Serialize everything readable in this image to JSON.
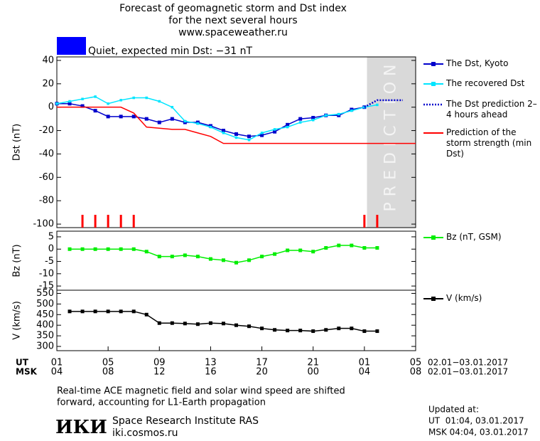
{
  "title_lines": [
    "Forecast of geomagnetic storm and Dst index",
    "for the next several hours",
    "www.spaceweather.ru"
  ],
  "status": "Quiet, expected min Dst: −31 nT",
  "status_color": "#0000ff",
  "chart_data": [
    {
      "type": "line",
      "y_label": "Dst (nT)",
      "xlim": [
        0,
        28
      ],
      "ylim": [
        -103,
        43
      ],
      "yticks": [
        40,
        20,
        0,
        -20,
        -40,
        -60,
        -80,
        -100
      ],
      "prediction_band": [
        24.2,
        28
      ],
      "prediction_label": "PREDICTION",
      "alert_x": [
        2,
        3,
        4,
        5,
        6,
        24,
        25
      ],
      "alert_color": "#ff0000",
      "series": [
        {
          "name": "The Dst, Kyoto",
          "color": "#0000cc",
          "marker": "square",
          "dash": false,
          "x": [
            0,
            1,
            2,
            3,
            4,
            5,
            6,
            7,
            8,
            9,
            10,
            11,
            12,
            13,
            14,
            15,
            16,
            17,
            18,
            19,
            20,
            21,
            22,
            23,
            24
          ],
          "values": [
            3,
            3,
            1,
            -3,
            -8,
            -8,
            -8,
            -10,
            -13,
            -10,
            -13,
            -13,
            -16,
            -20,
            -23,
            -25,
            -24,
            -21,
            -15,
            -10,
            -9,
            -7,
            -7,
            -2,
            0
          ]
        },
        {
          "name": "The recovered Dst",
          "color": "#00e5ff",
          "marker": "small-square",
          "dash": false,
          "x": [
            0,
            1,
            2,
            3,
            4,
            5,
            6,
            7,
            8,
            9,
            10,
            11,
            12,
            13,
            14,
            15,
            16,
            17,
            18,
            19,
            20,
            21,
            22,
            23,
            24,
            25
          ],
          "values": [
            3,
            5,
            7,
            9,
            3,
            6,
            8,
            8,
            5,
            0,
            -12,
            -14,
            -17,
            -22,
            -26,
            -28,
            -22,
            -19,
            -17,
            -13,
            -11,
            -7,
            -6,
            -3,
            0,
            2
          ]
        },
        {
          "name": "The Dst prediction 2–4 hours ahead",
          "color": "#0000cc",
          "marker": "none",
          "dash": true,
          "x": [
            24,
            25,
            27
          ],
          "values": [
            0,
            6,
            6
          ]
        },
        {
          "name": "Prediction of the storm strength (min Dst)",
          "color": "#ff0000",
          "marker": "none",
          "dash": false,
          "x": [
            0,
            5,
            6,
            7,
            9,
            10,
            11,
            12,
            13,
            28
          ],
          "values": [
            0,
            0,
            -5,
            -17,
            -19,
            -19,
            -22,
            -25,
            -31,
            -31
          ]
        }
      ]
    },
    {
      "type": "line",
      "y_label": "Bz (nT)",
      "xlim": [
        0,
        28
      ],
      "ylim": [
        -16.7,
        7.3
      ],
      "yticks": [
        5,
        0,
        -5,
        -10,
        -15
      ],
      "series": [
        {
          "name": "Bz (nT, GSM)",
          "color": "#00ee00",
          "marker": "square",
          "dash": false,
          "x": [
            1,
            2,
            3,
            4,
            5,
            6,
            7,
            8,
            9,
            10,
            11,
            12,
            13,
            14,
            15,
            16,
            17,
            18,
            19,
            20,
            21,
            22,
            23,
            24,
            25
          ],
          "values": [
            0,
            0,
            0,
            0,
            0,
            0,
            -1,
            -3,
            -3,
            -2.5,
            -3,
            -4,
            -4.5,
            -5.5,
            -4.5,
            -3,
            -2,
            -0.5,
            -0.5,
            -1,
            0.5,
            1.5,
            1.5,
            0.5,
            0.5
          ]
        }
      ]
    },
    {
      "type": "line",
      "y_label": "V (km/s)",
      "xlim": [
        0,
        28
      ],
      "ylim": [
        280,
        565
      ],
      "yticks": [
        550,
        500,
        450,
        400,
        350,
        300
      ],
      "series": [
        {
          "name": "V (km/s)",
          "color": "#000000",
          "marker": "square",
          "dash": false,
          "x": [
            1,
            2,
            3,
            4,
            5,
            6,
            7,
            8,
            9,
            10,
            11,
            12,
            13,
            14,
            15,
            16,
            17,
            18,
            19,
            20,
            21,
            22,
            23,
            24,
            25
          ],
          "values": [
            465,
            465,
            465,
            465,
            465,
            465,
            450,
            410,
            410,
            408,
            405,
            410,
            408,
            400,
            395,
            385,
            378,
            375,
            375,
            372,
            378,
            385,
            385,
            372,
            372
          ]
        }
      ],
      "xticks_rows": [
        {
          "name": "UT",
          "dates": "02.01−03.01.2017",
          "ticks": [
            {
              "value": 0,
              "label": "01"
            },
            {
              "value": 4,
              "label": "05"
            },
            {
              "value": 8,
              "label": "09"
            },
            {
              "value": 12,
              "label": "13"
            },
            {
              "value": 16,
              "label": "17"
            },
            {
              "value": 20,
              "label": "21"
            },
            {
              "value": 24,
              "label": "01"
            },
            {
              "value": 28,
              "label": "05"
            }
          ]
        },
        {
          "name": "MSK",
          "dates": "02.01−03.01.2017",
          "ticks": [
            {
              "value": 0,
              "label": "04"
            },
            {
              "value": 4,
              "label": "08"
            },
            {
              "value": 8,
              "label": "12"
            },
            {
              "value": 12,
              "label": "16"
            },
            {
              "value": 16,
              "label": "20"
            },
            {
              "value": 20,
              "label": "00"
            },
            {
              "value": 24,
              "label": "04"
            },
            {
              "value": 28,
              "label": "08"
            }
          ]
        }
      ]
    }
  ],
  "note_lines": [
    "Real-time ACE magnetic field and solar wind speed are shifted",
    "forward, accounting for L1-Earth propagation"
  ],
  "institute": {
    "logo": "ИКИ",
    "name": "Space Research Institute RAS",
    "url": "iki.cosmos.ru"
  },
  "updated": [
    "Updated at:",
    "UT  01:04, 03.01.2017",
    "MSK 04:04, 03.01.2017"
  ]
}
